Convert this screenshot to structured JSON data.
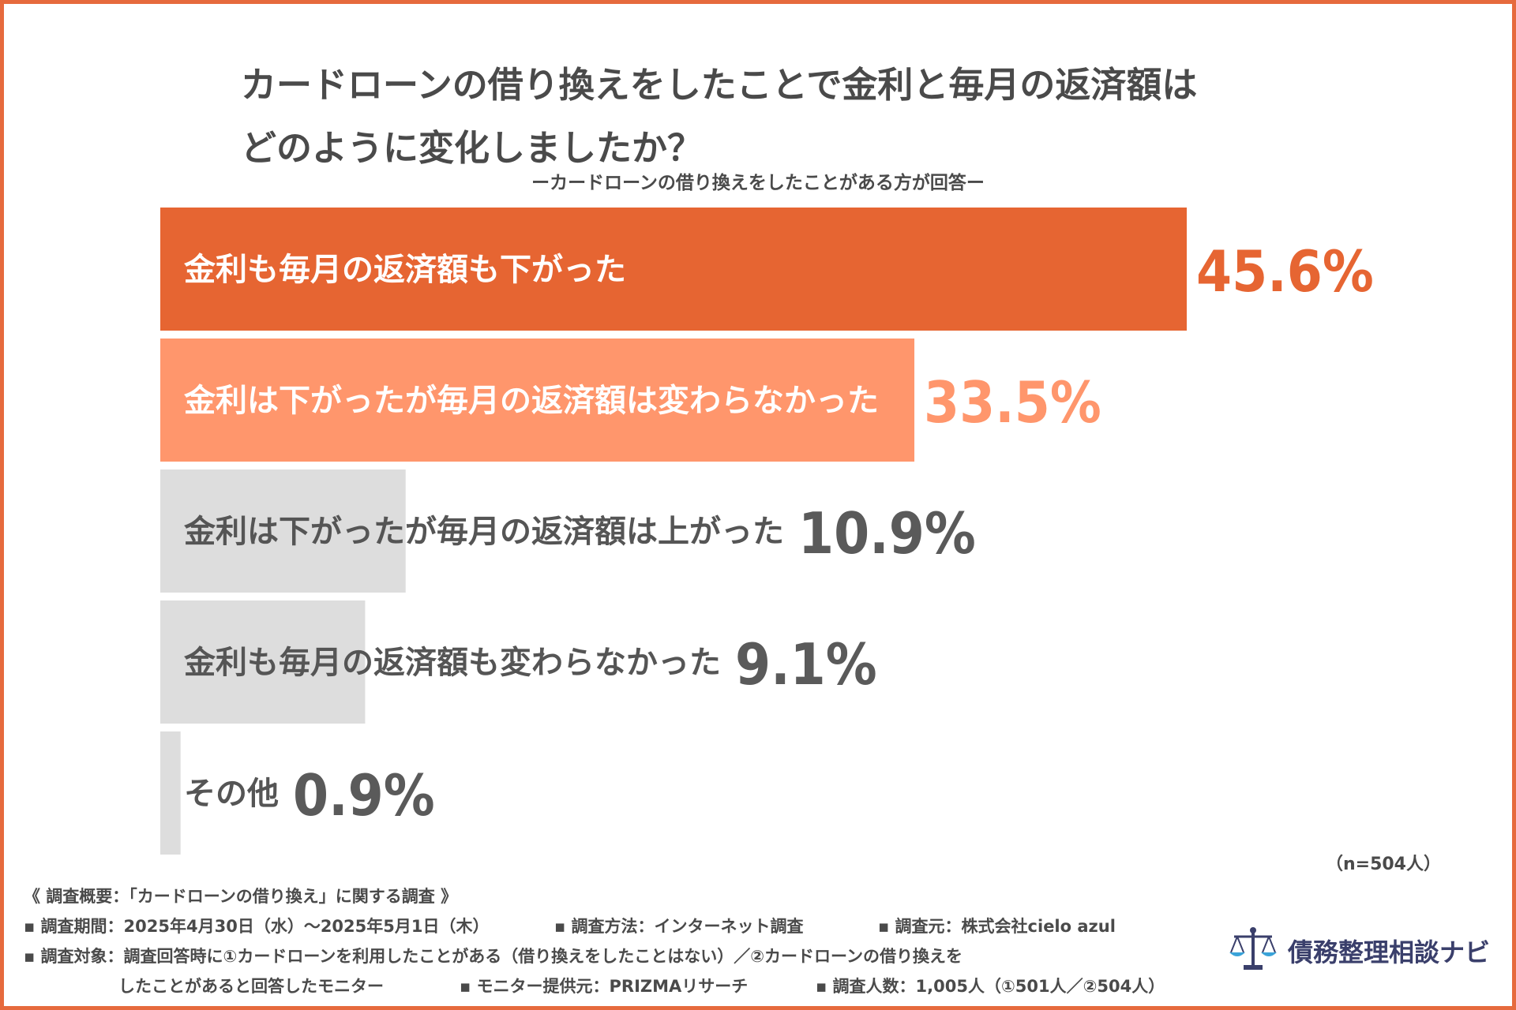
{
  "chart_data": {
    "type": "bar",
    "orientation": "horizontal",
    "title": "カードローンの借り換えをしたことで金利と毎月の返済額は\nどのように変化しましたか？",
    "subtitle": "ーカードローンの借り換えをしたことがある方が回答ー",
    "categories": [
      "金利も毎月の返済額も下がった",
      "金利は下がったが毎月の返済額は変わらなかった",
      "金利は下がったが毎月の返済額は上がった",
      "金利も毎月の返済額も変わらなかった",
      "その他"
    ],
    "values": [
      45.6,
      33.5,
      10.9,
      9.1,
      0.9
    ],
    "value_labels": [
      "45.6%",
      "33.5%",
      "10.9%",
      "9.1%",
      "0.9%"
    ],
    "bar_colors": [
      "#e66532",
      "#ff966c",
      "#dddddd",
      "#dddddd",
      "#dddddd"
    ],
    "label_colors": [
      "#ffffff",
      "#ffffff",
      "#555555",
      "#555555",
      "#555555"
    ],
    "value_colors": [
      "#e66532",
      "#ff966c",
      "#5a5a5a",
      "#5a5a5a",
      "#5a5a5a"
    ],
    "xlim": [
      0,
      45.6
    ],
    "grid": false,
    "legend": "none",
    "sample_size": "（n=504人）"
  },
  "footer": {
    "heading": "《 調査概要：「カードローンの借り換え」に関する調査 》",
    "period": "▪ 調査期間：2025年4月30日（水）〜2025年5月1日（木）",
    "method": "▪ 調査方法：インターネット調査",
    "source": "▪ 調査元：株式会社cielo azul",
    "target_1": "▪ 調査対象：調査回答時に①カードローンを利用したことがある（借り換えをしたことはない）／②カードローンの借り換えを",
    "target_2": "したことがあると回答したモニター",
    "provider": "▪ モニター提供元：PRIZMAリサーチ",
    "count": "▪ 調査人数：1,005人（①501人／②504人）"
  },
  "logo": {
    "text": "債務整理相談ナビ",
    "icon": "scales-of-justice-icon",
    "color": "#3a3f6b",
    "accent": "#3aa3d9"
  }
}
